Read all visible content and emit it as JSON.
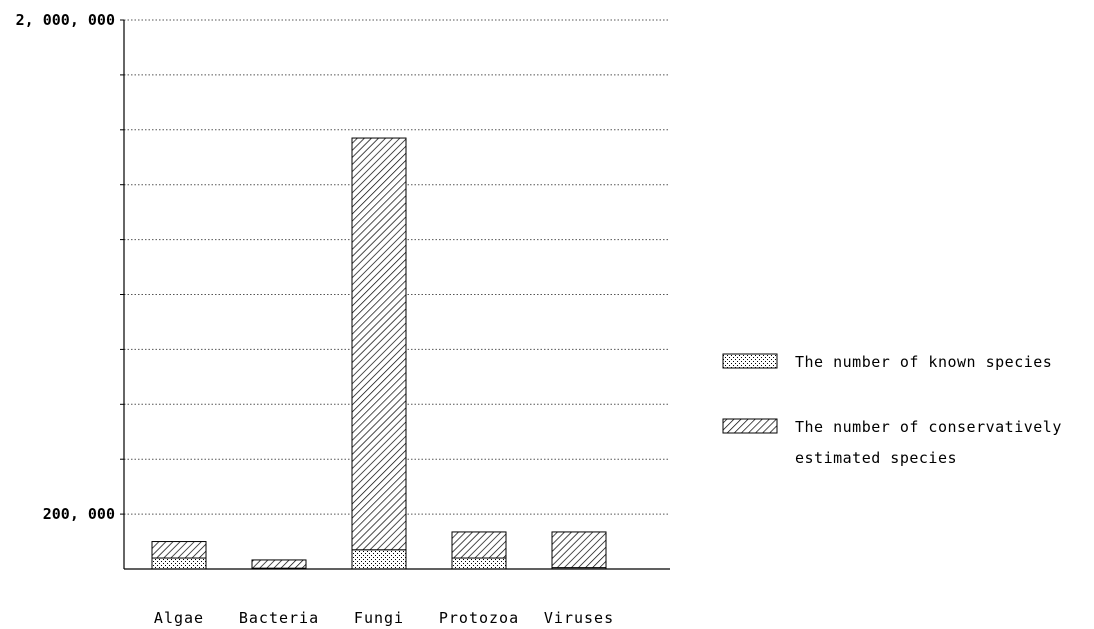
{
  "chart_data": {
    "type": "bar",
    "stacked": true,
    "categories": [
      "Algae",
      "Bacteria",
      "Fungi",
      "Protozoa",
      "Viruses"
    ],
    "series": [
      {
        "name": "The number of known species",
        "pattern": "dotted",
        "values": [
          40000,
          3000,
          70000,
          40000,
          5000
        ]
      },
      {
        "name": "The number of conservatively estimated species",
        "pattern": "hatched",
        "values": [
          60000,
          30000,
          1500000,
          95000,
          130000
        ]
      }
    ],
    "ylim": [
      0,
      2000000
    ],
    "ytick_labels": [
      {
        "value": 200000,
        "label": "200, 000"
      },
      {
        "value": 2000000,
        "label": "2, 000, 000"
      }
    ],
    "gridline_step": 200000,
    "grid": true,
    "grid_style": "dotted",
    "legend_position": "right",
    "title": "",
    "xlabel": "",
    "ylabel": "",
    "colors": {
      "bar_outline": "#000000",
      "grid": "#555555",
      "background": "#ffffff"
    }
  }
}
